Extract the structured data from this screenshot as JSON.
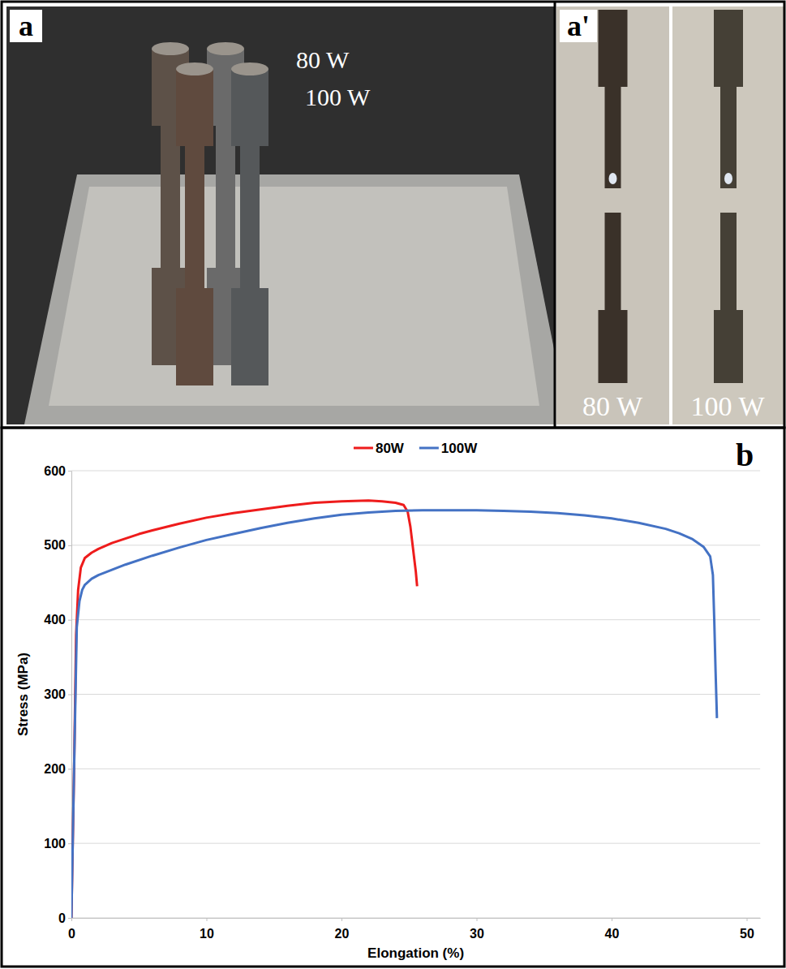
{
  "photos": [
    {
      "label": "a",
      "texts": [
        "80 W",
        "100 W"
      ]
    },
    {
      "label": "a'",
      "texts": [
        "80 W",
        "100 W"
      ]
    }
  ],
  "chart_panel_label": "b",
  "chart_data": {
    "type": "line",
    "x_label": "Elongation (%)",
    "y_label": "Stress (MPa)",
    "xlim": [
      0,
      51
    ],
    "xticks": [
      0,
      10,
      20,
      30,
      40,
      50
    ],
    "ylim": [
      0,
      600
    ],
    "yticks": [
      0,
      100,
      200,
      300,
      400,
      500,
      600
    ],
    "grid": true,
    "legend": "top",
    "series": [
      {
        "name": "80W",
        "color": "#ee1c1c",
        "x": [
          0,
          0.2,
          0.35,
          0.5,
          0.7,
          1.0,
          1.5,
          2,
          3,
          4,
          5,
          6,
          8,
          10,
          12,
          14,
          16,
          18,
          20,
          22,
          23,
          24,
          24.6,
          24.9,
          25.1,
          25.3,
          25.5,
          25.6
        ],
        "values": [
          0,
          200,
          380,
          440,
          470,
          483,
          490,
          495,
          503,
          509,
          515,
          520,
          529,
          537,
          543,
          548,
          553,
          557,
          559,
          560,
          559,
          557,
          554,
          545,
          525,
          495,
          465,
          445
        ]
      },
      {
        "name": "100W",
        "color": "#4472c4",
        "x": [
          0,
          0.2,
          0.4,
          0.6,
          0.8,
          1.0,
          1.5,
          2,
          3,
          4,
          6,
          8,
          10,
          12,
          14,
          16,
          18,
          20,
          22,
          24,
          26,
          28,
          30,
          32,
          34,
          36,
          38,
          40,
          42,
          44,
          45,
          46,
          46.8,
          47.3,
          47.5,
          47.6,
          47.7,
          47.8
        ],
        "values": [
          0,
          200,
          390,
          425,
          440,
          447,
          455,
          460,
          467,
          474,
          486,
          497,
          507,
          515,
          523,
          530,
          536,
          541,
          544,
          546,
          547,
          547,
          547,
          546,
          545,
          543,
          540,
          536,
          530,
          522,
          516,
          508,
          498,
          485,
          460,
          400,
          330,
          268
        ]
      }
    ]
  }
}
